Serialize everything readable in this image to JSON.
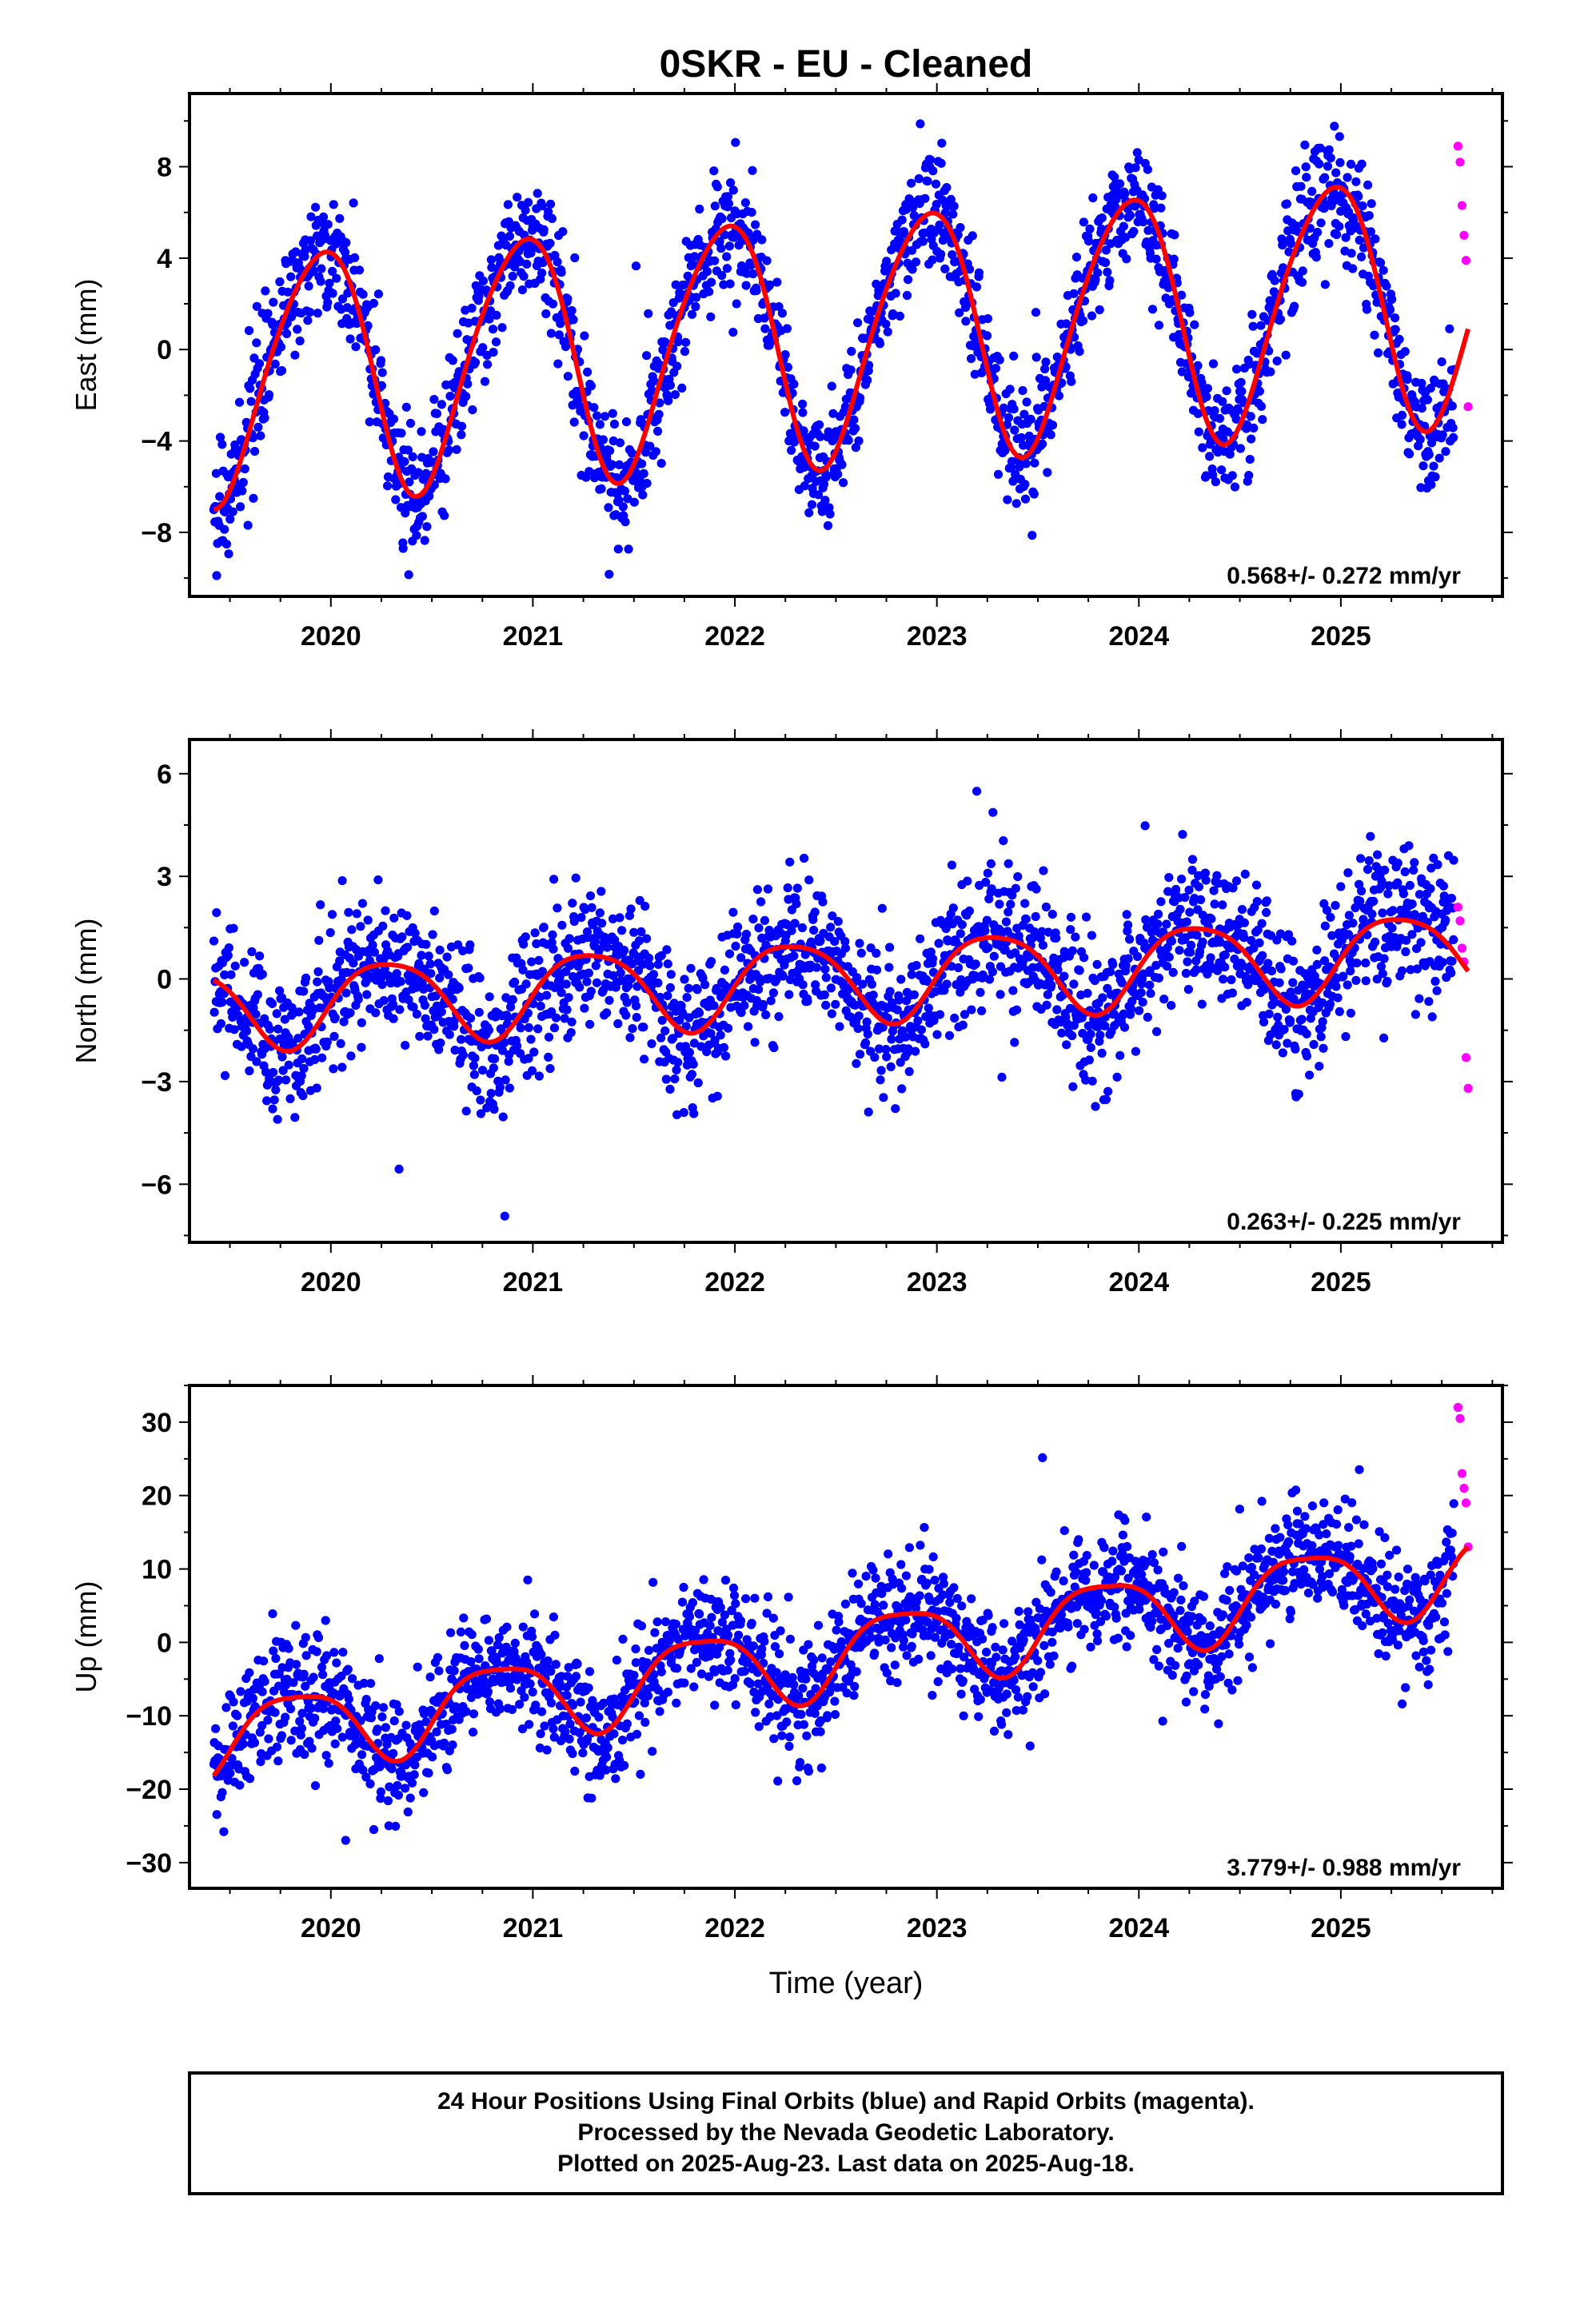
{
  "title": "0SKR  - EU - Cleaned",
  "xlabel": "Time (year)",
  "footer": {
    "line1": "24 Hour Positions Using Final Orbits (blue) and Rapid Orbits (magenta).",
    "line2": "Processed by the Nevada Geodetic Laboratory.",
    "line3": "Plotted on 2025-Aug-23. Last data on 2025-Aug-18."
  },
  "colors": {
    "final": "#0000ff",
    "rapid": "#ff00ff",
    "model": "#ff0000",
    "frame": "#000000"
  },
  "chart_data": [
    {
      "type": "scatter",
      "ylabel": "East (mm)",
      "rate": "0.568+/- 0.272 mm/yr",
      "xlim": [
        2019.3,
        2025.8
      ],
      "ylim": [
        -10.8,
        11.2
      ],
      "yticks": [
        -8,
        -4,
        0,
        4,
        8
      ],
      "ytick_labels": [
        "−8",
        "−4",
        "0",
        "4",
        "8"
      ],
      "xticks": [
        2020,
        2021,
        2022,
        2023,
        2024,
        2025
      ],
      "xtick_labels": [
        "2020",
        "2021",
        "2022",
        "2023",
        "2024",
        "2025"
      ],
      "series": [
        {
          "role": "final",
          "x_range": [
            2019.42,
            2025.56
          ],
          "trend": {
            "t0": 2022.5,
            "intercept": 0.6,
            "rate": 0.568
          },
          "annual_amp": 5.4,
          "annual_phase": 1.93,
          "semiannual_amp": 0.6,
          "semiannual_phase": 0.0,
          "noise_sd": 1.3
        },
        {
          "role": "rapid",
          "x": [
            2025.58,
            2025.59,
            2025.6,
            2025.61,
            2025.62,
            2025.63
          ],
          "y": [
            8.9,
            8.2,
            6.3,
            5.0,
            3.9,
            -2.5
          ]
        },
        {
          "role": "model",
          "name": ""
        }
      ]
    },
    {
      "type": "scatter",
      "ylabel": "North (mm)",
      "rate": "0.263+/- 0.225 mm/yr",
      "xlim": [
        2019.3,
        2025.8
      ],
      "ylim": [
        -7.7,
        7.0
      ],
      "yticks": [
        -6,
        -3,
        0,
        3,
        6
      ],
      "ytick_labels": [
        "−6",
        "−3",
        "0",
        "3",
        "6"
      ],
      "xticks": [
        2020,
        2021,
        2022,
        2023,
        2024,
        2025
      ],
      "xtick_labels": [
        "2020",
        "2021",
        "2022",
        "2023",
        "2024",
        "2025"
      ],
      "series": [
        {
          "role": "final",
          "x_range": [
            2019.42,
            2025.56
          ],
          "trend": {
            "t0": 2022.5,
            "intercept": 0.0,
            "rate": 0.263
          },
          "annual_amp": 1.2,
          "annual_phase": -0.2,
          "semiannual_amp": 0.2,
          "semiannual_phase": 1.0,
          "noise_sd": 1.0
        },
        {
          "role": "rapid",
          "x": [
            2025.58,
            2025.59,
            2025.6,
            2025.61,
            2025.62,
            2025.63
          ],
          "y": [
            2.1,
            1.7,
            0.9,
            0.5,
            -2.3,
            -3.2
          ]
        },
        {
          "role": "model",
          "name": ""
        }
      ]
    },
    {
      "type": "scatter",
      "ylabel": "Up (mm)",
      "rate": "3.779+/- 0.988 mm/yr",
      "xlim": [
        2019.3,
        2025.8
      ],
      "ylim": [
        -33.5,
        35.0
      ],
      "yticks": [
        -30,
        -20,
        -10,
        0,
        10,
        20,
        30
      ],
      "ytick_labels": [
        "−30",
        "−20",
        "−10",
        "0",
        "10",
        "20",
        "30"
      ],
      "xticks": [
        2020,
        2021,
        2022,
        2023,
        2024,
        2025
      ],
      "xtick_labels": [
        "2020",
        "2021",
        "2022",
        "2023",
        "2024",
        "2025"
      ],
      "series": [
        {
          "role": "final",
          "x_range": [
            2019.42,
            2025.56
          ],
          "trend": {
            "t0": 2022.5,
            "intercept": -1.5,
            "rate": 3.779
          },
          "annual_amp": 5.3,
          "annual_phase": 2.65,
          "semiannual_amp": 1.2,
          "semiannual_phase": 0.5,
          "noise_sd": 4.0
        },
        {
          "role": "rapid",
          "x": [
            2025.58,
            2025.59,
            2025.6,
            2025.61,
            2025.62,
            2025.63
          ],
          "y": [
            32.0,
            30.5,
            23.0,
            21.0,
            19.0,
            13.0
          ]
        },
        {
          "role": "model",
          "name": ""
        }
      ]
    }
  ]
}
